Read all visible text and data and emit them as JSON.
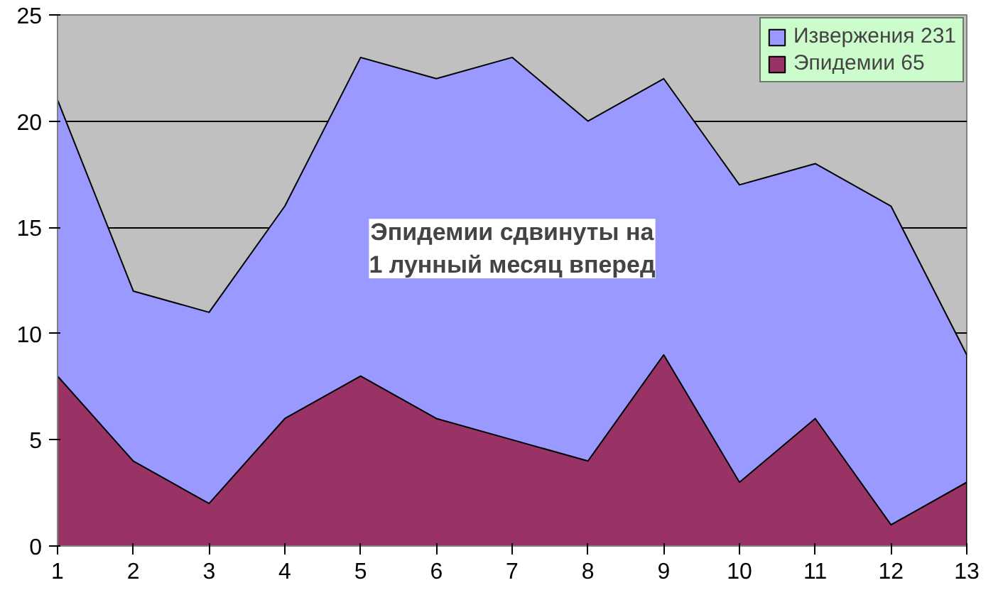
{
  "chart_data": {
    "type": "area",
    "x": [
      1,
      2,
      3,
      4,
      5,
      6,
      7,
      8,
      9,
      10,
      11,
      12,
      13
    ],
    "series": [
      {
        "name": "Извержения 231",
        "color": "#9999ff",
        "values": [
          21,
          12,
          11,
          16,
          23,
          22,
          23,
          20,
          22,
          17,
          18,
          16,
          9
        ]
      },
      {
        "name": "Эпидемии 65",
        "color": "#993366",
        "values": [
          8,
          4,
          2,
          6,
          8,
          6,
          5,
          4,
          9,
          3,
          6,
          1,
          3
        ]
      }
    ],
    "xlim": [
      1,
      13
    ],
    "xticks": [
      1,
      2,
      3,
      4,
      5,
      6,
      7,
      8,
      9,
      10,
      11,
      12,
      13
    ],
    "ylim": [
      0,
      25
    ],
    "yticks": [
      0,
      5,
      10,
      15,
      20,
      25
    ],
    "grid": "y",
    "legend": "top right",
    "annotations": [
      "Эпидемии сдвинуты на\n1 лунный месяц вперед"
    ]
  }
}
